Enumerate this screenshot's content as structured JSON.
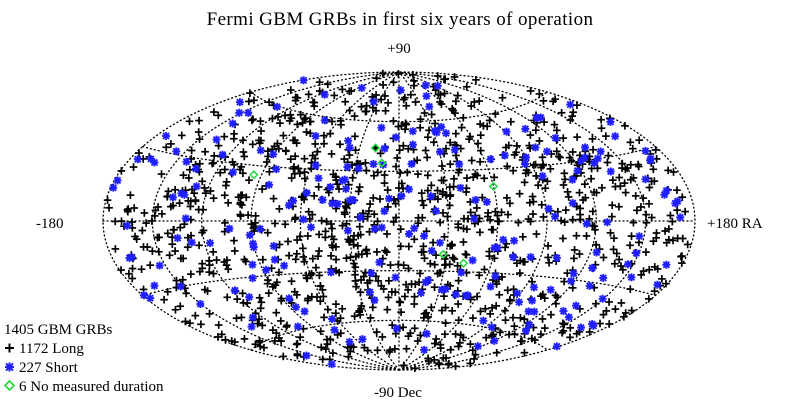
{
  "chart_data": {
    "type": "scatter",
    "projection": "aitoff",
    "title": "Fermi GBM GRBs in first six years of operation",
    "axis_labels": {
      "top": "+90",
      "bottom": "-90 Dec",
      "left": "-180",
      "right": "+180 RA"
    },
    "xlim": [
      -180,
      180
    ],
    "ylim": [
      -90,
      90
    ],
    "grid": true,
    "legend_position": "bottom-left",
    "legend": {
      "title": "1405 GBM GRBs",
      "entries": [
        {
          "symbol": "+",
          "label": "1172 Long",
          "color": "#000000"
        },
        {
          "symbol": "✱",
          "label": "227 Short",
          "color": "#1f1fff"
        },
        {
          "symbol": "◇",
          "label": "6 No measured duration",
          "color": "#22d83a"
        }
      ]
    },
    "series": [
      {
        "name": "1172 Long",
        "marker": "plus",
        "color": "#000000",
        "count": 1172
      },
      {
        "name": "227 Short",
        "marker": "asterisk",
        "color": "#1f1fff",
        "count": 227
      },
      {
        "name": "6 No measured duration",
        "marker": "diamond",
        "color": "#22d83a",
        "count": 6,
        "points": [
          [
            -18,
            44
          ],
          [
            -12,
            35
          ],
          [
            60,
            20
          ],
          [
            -95,
            25
          ],
          [
            42,
            -25
          ],
          [
            28,
            -20
          ]
        ]
      }
    ]
  }
}
